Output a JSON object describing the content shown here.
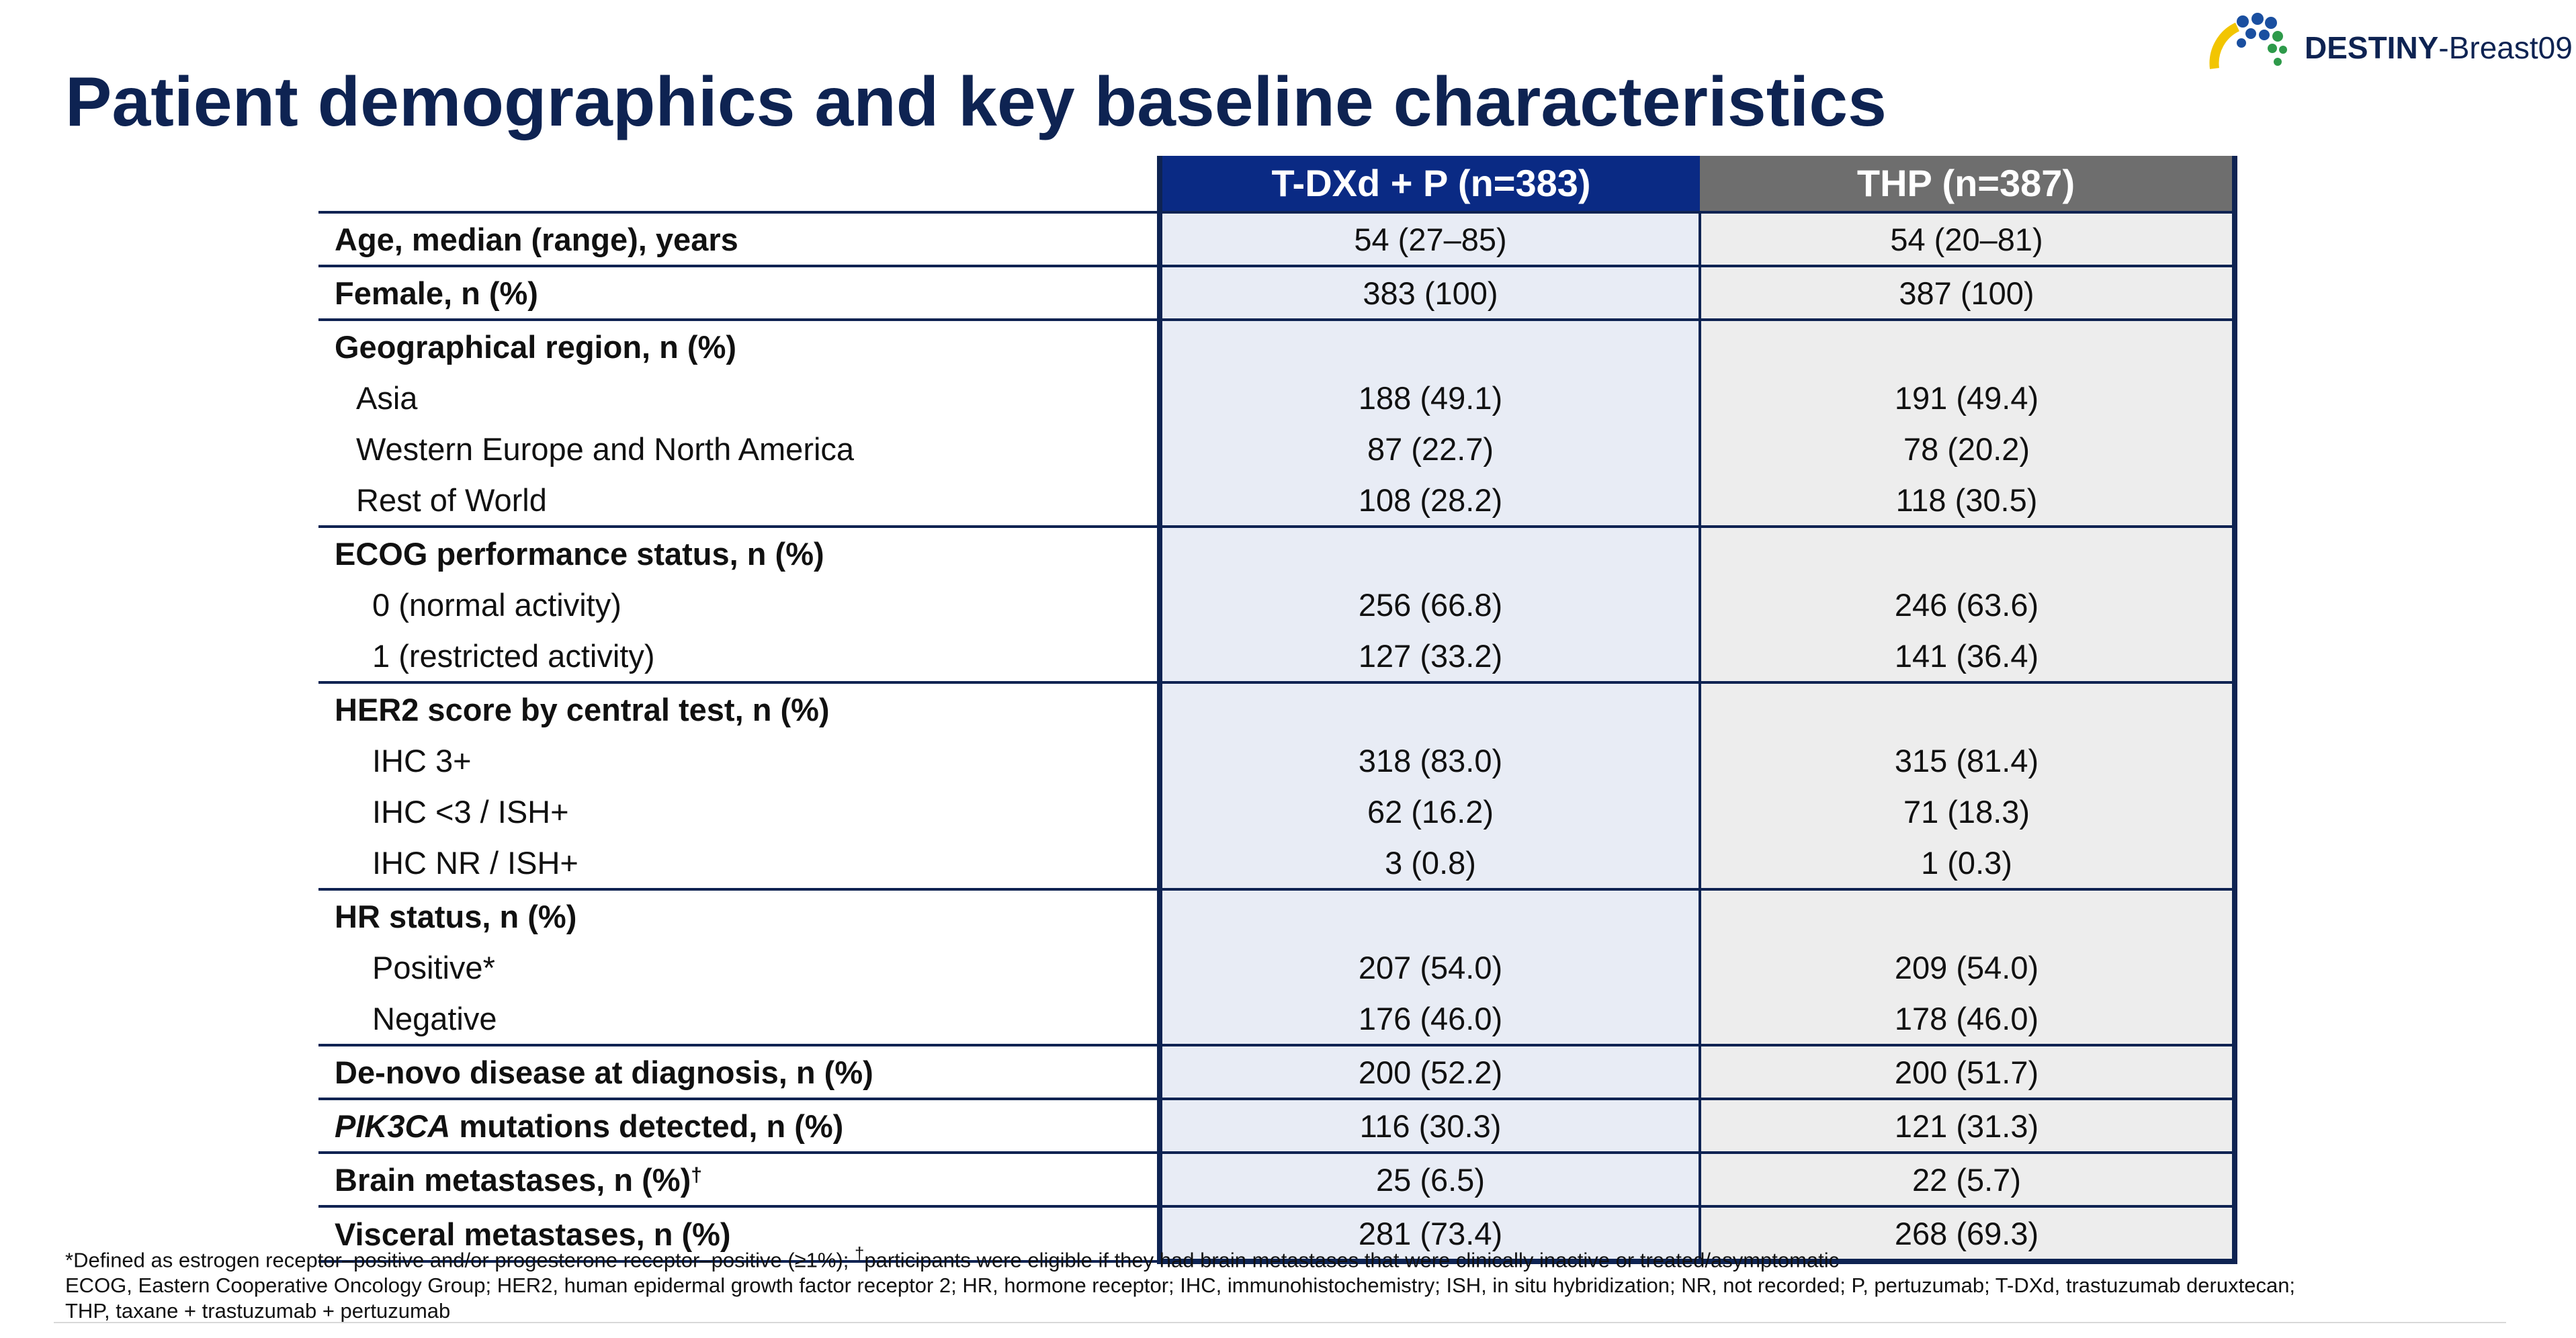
{
  "slide": {
    "title": "Patient demographics and key baseline characteristics",
    "logo": {
      "text_bold": "DESTINY",
      "text_rest": "-Breast09"
    }
  },
  "table": {
    "columns": [
      "",
      "T-DXd + P (n=383)",
      "THP (n=387)"
    ],
    "rows": [
      {
        "label": "Age, median (range), years",
        "a": "54 (27–85)",
        "b": "54 (20–81)"
      },
      {
        "label": "Female, n (%)",
        "a": "383 (100)",
        "b": "387 (100)"
      },
      {
        "label": "Geographical region, n (%)",
        "a": "",
        "b": ""
      },
      {
        "label": "Asia",
        "a": "188 (49.1)",
        "b": "191 (49.4)"
      },
      {
        "label": "Western Europe and North America",
        "a": "87 (22.7)",
        "b": "78 (20.2)"
      },
      {
        "label": "Rest of World",
        "a": "108 (28.2)",
        "b": "118 (30.5)"
      },
      {
        "label": "ECOG performance status, n (%)",
        "a": "",
        "b": ""
      },
      {
        "label": "0 (normal activity)",
        "a": "256 (66.8)",
        "b": "246 (63.6)"
      },
      {
        "label": "1 (restricted activity)",
        "a": "127 (33.2)",
        "b": "141 (36.4)"
      },
      {
        "label": "HER2 score by central test, n (%)",
        "a": "",
        "b": ""
      },
      {
        "label": "IHC 3+",
        "a": "318 (83.0)",
        "b": "315 (81.4)"
      },
      {
        "label": "IHC <3 / ISH+",
        "a": "62 (16.2)",
        "b": "71 (18.3)"
      },
      {
        "label": "IHC NR / ISH+",
        "a": "3 (0.8)",
        "b": "1 (0.3)"
      },
      {
        "label": "HR status, n (%)",
        "a": "",
        "b": ""
      },
      {
        "label": "Positive*",
        "a": "207 (54.0)",
        "b": "209 (54.0)"
      },
      {
        "label": "Negative",
        "a": "176 (46.0)",
        "b": "178 (46.0)"
      },
      {
        "label": "De-novo disease at diagnosis, n (%)",
        "a": "200 (52.2)",
        "b": "200 (51.7)"
      },
      {
        "label_italic": "PIK3CA",
        "label": " mutations detected, n (%)",
        "a": "116 (30.3)",
        "b": "121 (31.3)"
      },
      {
        "label": "Brain metastases, n (%)",
        "label_sup": "†",
        "a": "25 (6.5)",
        "b": "22 (5.7)"
      },
      {
        "label": "Visceral metastases, n (%)",
        "a": "281 (73.4)",
        "b": "268 (69.3)"
      }
    ]
  },
  "footnotes": {
    "line1_a": "*Defined as estrogen receptor–positive and/or progesterone receptor–positive (≥1%); ",
    "line1_sup": "†",
    "line1_b": "participants were eligible if they had brain metastases that were clinically inactive or treated/asymptomatic",
    "line2": "ECOG, Eastern Cooperative Oncology Group; HER2, human epidermal growth factor receptor 2; HR, hormone receptor; IHC, immunohistochemistry; ISH, in situ hybridization; NR, not recorded; P, pertuzumab; T-DXd, trastuzumab deruxtecan;",
    "line3": "THP, taxane + trastuzumab + pertuzumab"
  },
  "colors": {
    "title": "#0e2352",
    "header_tdxd": "#0a2a84",
    "header_thp": "#6e6e6e",
    "cell_tdxd": "#e8ecf5",
    "cell_thp": "#ededed",
    "rule": "#0e2352",
    "logo_yellow": "#f2c500",
    "logo_blue": "#1a4fa0",
    "logo_green": "#2e9a4a"
  }
}
